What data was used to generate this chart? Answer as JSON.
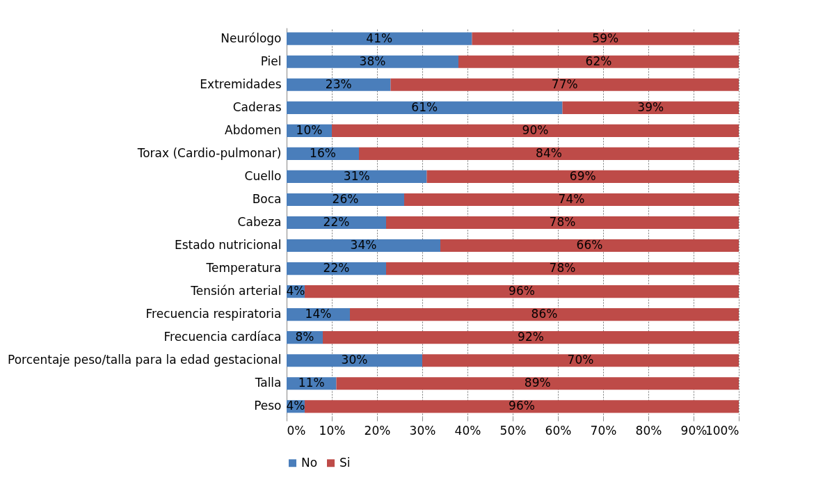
{
  "chart_data": {
    "type": "bar",
    "orientation": "horizontal",
    "stacked": true,
    "categories": [
      "Neurólogo",
      "Piel",
      "Extremidades",
      "Caderas",
      "Abdomen",
      "Torax (Cardio-pulmonar)",
      "Cuello",
      "Boca",
      "Cabeza",
      "Estado nutricional",
      "Temperatura",
      "Tensión arterial",
      "Frecuencia respiratoria",
      "Frecuencia cardíaca",
      "Porcentaje peso/talla para la edad gestacional",
      "Talla",
      "Peso"
    ],
    "series": [
      {
        "name": "No",
        "color": "#4a7ebb",
        "values": [
          41,
          38,
          23,
          61,
          10,
          16,
          31,
          26,
          22,
          34,
          22,
          4,
          14,
          8,
          30,
          11,
          4
        ],
        "value_labels": [
          "41%",
          "38%",
          "23%",
          "61%",
          "10%",
          "16%",
          "31%",
          "26%",
          "22%",
          "34%",
          "22%",
          "4%",
          "14%",
          "8%",
          "30%",
          "11%",
          "4%"
        ]
      },
      {
        "name": "Si",
        "color": "#be4b48",
        "values": [
          59,
          62,
          77,
          39,
          90,
          84,
          69,
          74,
          78,
          66,
          78,
          96,
          86,
          92,
          70,
          89,
          96
        ],
        "value_labels": [
          "59%",
          "62%",
          "77%",
          "39%",
          "90%",
          "84%",
          "69%",
          "74%",
          "78%",
          "66%",
          "78%",
          "96%",
          "86%",
          "92%",
          "70%",
          "89%",
          "96%"
        ]
      }
    ],
    "xlim": [
      0,
      100
    ],
    "xticks": [
      {
        "value": 0,
        "label": "0%"
      },
      {
        "value": 10,
        "label": "10%"
      },
      {
        "value": 20,
        "label": "20%"
      },
      {
        "value": 30,
        "label": "30%"
      },
      {
        "value": 40,
        "label": "40%"
      },
      {
        "value": 50,
        "label": "50%"
      },
      {
        "value": 60,
        "label": "60%"
      },
      {
        "value": 70,
        "label": "70%"
      },
      {
        "value": 80,
        "label": "80%"
      },
      {
        "value": 90,
        "label": "90%"
      },
      {
        "value": 100,
        "label": "100%"
      }
    ],
    "grid": "x",
    "legend": "bottom"
  }
}
